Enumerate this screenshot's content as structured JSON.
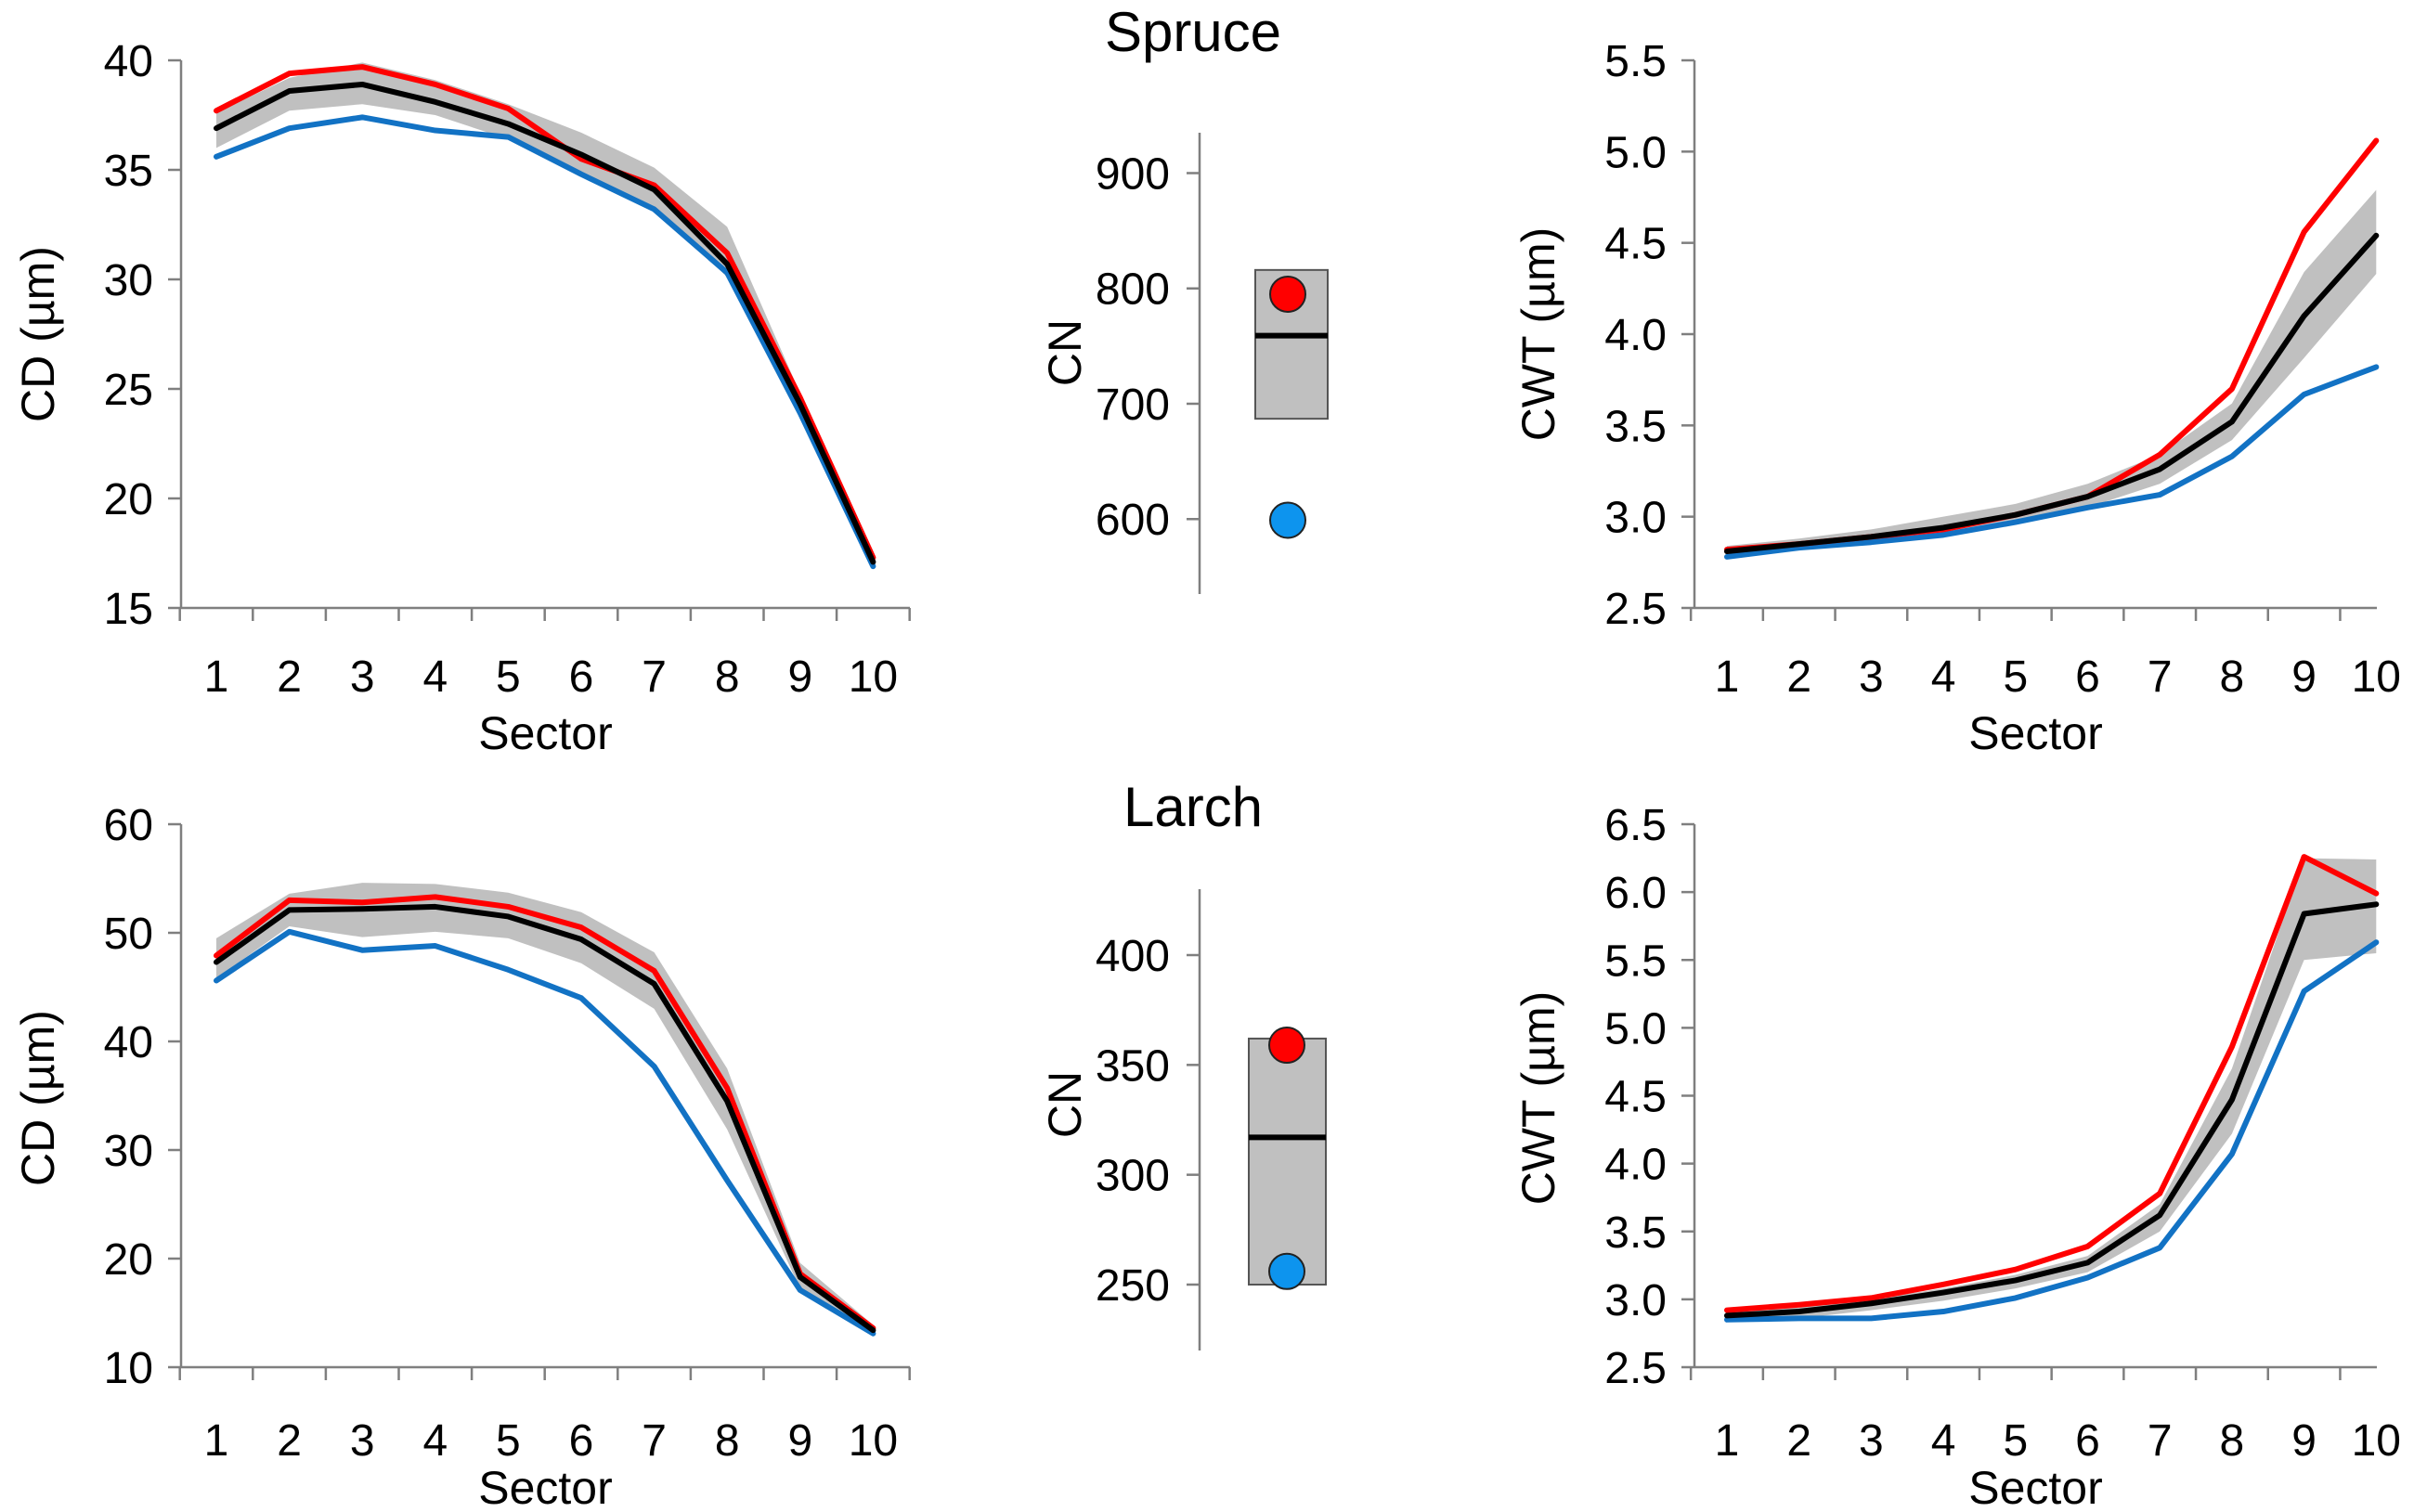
{
  "titles": {
    "spruce": "Spruce",
    "larch": "Larch"
  },
  "colors": {
    "high": "#ff0000",
    "low": "#1272c4",
    "mean": "#000000",
    "band": "#c0c0c0",
    "high_dot": "#ff0000",
    "low_dot": "#0d94ee"
  },
  "chart_data": [
    {
      "id": "spruce-cd",
      "type": "line",
      "title": "Spruce",
      "xlabel": "Sector",
      "ylabel": "CD (µm)",
      "categories": [
        1,
        2,
        3,
        4,
        5,
        6,
        7,
        8,
        9,
        10
      ],
      "ylim": [
        15,
        40
      ],
      "yticks": [
        15,
        20,
        25,
        30,
        35,
        40
      ],
      "series": [
        {
          "name": "mean",
          "values": [
            36.9,
            38.6,
            38.9,
            38.1,
            37.1,
            35.7,
            34.1,
            30.7,
            24.3,
            17.1
          ]
        },
        {
          "name": "high",
          "values": [
            37.7,
            39.4,
            39.7,
            38.9,
            37.8,
            35.5,
            34.3,
            31.2,
            24.6,
            17.3
          ]
        },
        {
          "name": "low",
          "values": [
            35.6,
            36.9,
            37.4,
            36.8,
            36.5,
            34.8,
            33.2,
            30.3,
            23.9,
            16.9
          ]
        }
      ],
      "band": {
        "upper": [
          37.6,
          39.2,
          39.9,
          39.1,
          38.0,
          36.7,
          35.1,
          32.4,
          24.8,
          17.6
        ],
        "lower": [
          36.0,
          37.7,
          38.0,
          37.5,
          36.4,
          34.9,
          33.3,
          30.1,
          23.8,
          16.8
        ]
      }
    },
    {
      "id": "spruce-cn",
      "type": "box",
      "ylabel": "CN",
      "ylim": [
        535,
        935
      ],
      "yticks": [
        600,
        700,
        800,
        900
      ],
      "box": {
        "lower": 687,
        "upper": 816,
        "mean": 759
      },
      "points": [
        {
          "name": "high",
          "value": 795
        },
        {
          "name": "low",
          "value": 599
        }
      ]
    },
    {
      "id": "spruce-cwt",
      "type": "line",
      "xlabel": "Sector",
      "ylabel": "CWT (µm)",
      "categories": [
        1,
        2,
        3,
        4,
        5,
        6,
        7,
        8,
        9,
        10
      ],
      "ylim": [
        2.5,
        5.5
      ],
      "yticks": [
        "2.5",
        "3.0",
        "3.5",
        "4.0",
        "4.5",
        "5.0",
        "5.5"
      ],
      "series": [
        {
          "name": "mean",
          "values": [
            2.81,
            2.85,
            2.89,
            2.94,
            3.01,
            3.11,
            3.26,
            3.52,
            4.1,
            4.54
          ]
        },
        {
          "name": "high",
          "values": [
            2.82,
            2.85,
            2.89,
            2.93,
            3.01,
            3.11,
            3.34,
            3.7,
            4.56,
            5.06
          ]
        },
        {
          "name": "low",
          "values": [
            2.78,
            2.83,
            2.86,
            2.9,
            2.97,
            3.05,
            3.12,
            3.33,
            3.67,
            3.82
          ]
        }
      ],
      "band": {
        "upper": [
          2.84,
          2.88,
          2.93,
          3.0,
          3.07,
          3.18,
          3.34,
          3.62,
          4.34,
          4.79
        ],
        "lower": [
          2.78,
          2.82,
          2.85,
          2.89,
          2.96,
          3.05,
          3.18,
          3.42,
          3.87,
          4.33
        ]
      }
    },
    {
      "id": "larch-cd",
      "type": "line",
      "title": "Larch",
      "xlabel": "Sector",
      "ylabel": "CD (µm)",
      "categories": [
        1,
        2,
        3,
        4,
        5,
        6,
        7,
        8,
        9,
        10
      ],
      "ylim": [
        10,
        60
      ],
      "yticks": [
        10,
        20,
        30,
        40,
        50,
        60
      ],
      "series": [
        {
          "name": "mean",
          "values": [
            47.3,
            52.1,
            52.2,
            52.4,
            51.5,
            49.4,
            45.3,
            34.5,
            18.3,
            13.4
          ]
        },
        {
          "name": "high",
          "values": [
            47.9,
            53.0,
            52.8,
            53.3,
            52.4,
            50.5,
            46.5,
            35.7,
            18.6,
            13.6
          ]
        },
        {
          "name": "low",
          "values": [
            45.6,
            50.1,
            48.4,
            48.8,
            46.6,
            44.0,
            37.7,
            27.2,
            17.1,
            13.1
          ]
        }
      ],
      "band": {
        "upper": [
          49.5,
          53.6,
          54.6,
          54.5,
          53.7,
          51.9,
          48.2,
          37.5,
          19.6,
          13.9
        ],
        "lower": [
          45.8,
          50.6,
          49.6,
          50.1,
          49.5,
          47.2,
          43.0,
          31.9,
          17.2,
          12.9
        ]
      }
    },
    {
      "id": "larch-cn",
      "type": "box",
      "ylabel": "CN",
      "ylim": [
        220,
        430
      ],
      "yticks": [
        250,
        300,
        350,
        400
      ],
      "box": {
        "lower": 250,
        "upper": 362,
        "mean": 317
      },
      "points": [
        {
          "name": "high",
          "value": 359
        },
        {
          "name": "low",
          "value": 256
        }
      ]
    },
    {
      "id": "larch-cwt",
      "type": "line",
      "xlabel": "Sector",
      "ylabel": "CWT (µm)",
      "categories": [
        1,
        2,
        3,
        4,
        5,
        6,
        7,
        8,
        9,
        10
      ],
      "ylim": [
        2.5,
        6.5
      ],
      "yticks": [
        "2.5",
        "3.0",
        "3.5",
        "4.0",
        "4.5",
        "5.0",
        "5.5",
        "6.0",
        "6.5"
      ],
      "series": [
        {
          "name": "mean",
          "values": [
            2.88,
            2.91,
            2.97,
            3.05,
            3.14,
            3.27,
            3.62,
            4.47,
            5.84,
            5.91
          ]
        },
        {
          "name": "high",
          "values": [
            2.92,
            2.96,
            3.01,
            3.11,
            3.22,
            3.39,
            3.78,
            4.86,
            6.26,
            5.99
          ]
        },
        {
          "name": "low",
          "values": [
            2.85,
            2.86,
            2.86,
            2.91,
            3.01,
            3.16,
            3.38,
            4.07,
            5.27,
            5.63
          ]
        }
      ],
      "band": {
        "upper": [
          2.91,
          2.94,
          3.0,
          3.08,
          3.18,
          3.32,
          3.7,
          4.7,
          6.25,
          6.24
        ],
        "lower": [
          2.84,
          2.86,
          2.92,
          2.99,
          3.08,
          3.2,
          3.5,
          4.22,
          5.5,
          5.55
        ]
      }
    }
  ]
}
